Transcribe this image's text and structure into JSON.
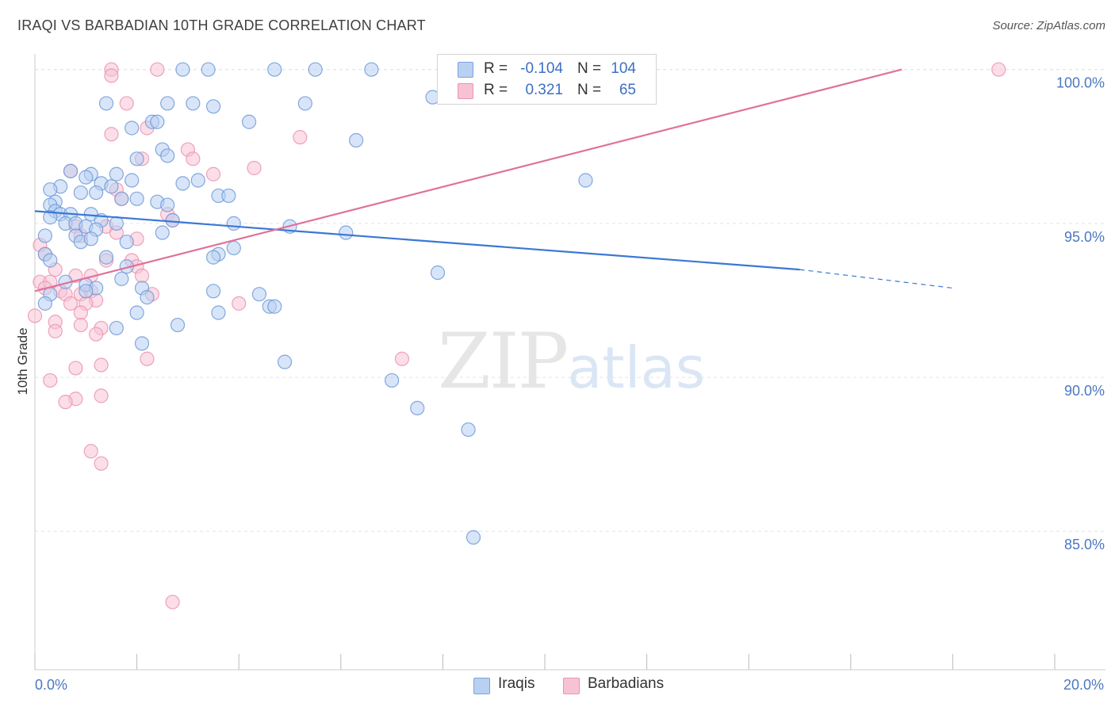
{
  "title": "IRAQI VS BARBADIAN 10TH GRADE CORRELATION CHART",
  "source": "Source: ZipAtlas.com",
  "watermark": {
    "zip": "ZIP",
    "atlas": "atlas"
  },
  "colors": {
    "iraqi": "#3b78d4",
    "iraqi_fill": "#b8d0f2",
    "barbadian": "#e0719b",
    "barbadian_fill": "#f7c3d3",
    "tick_label": "#4a78c2"
  },
  "legend": {
    "rows": [
      {
        "r_label": "R =",
        "r_value": "-0.104",
        "n_label": "N =",
        "n_value": "104"
      },
      {
        "r_label": "R =",
        "r_value": "0.321",
        "n_label": "N =",
        "n_value": "65"
      }
    ]
  },
  "bottom_legend": {
    "iraqis": "Iraqis",
    "barbadians": "Barbadians"
  },
  "chart_data": {
    "type": "scatter",
    "title": "IRAQI VS BARBADIAN 10TH GRADE CORRELATION CHART",
    "xlabel": "",
    "ylabel": "10th Grade",
    "xlim": [
      0,
      20
    ],
    "ylim": [
      80.5,
      100.5
    ],
    "x_tick_labels": [
      "0.0%",
      "20.0%"
    ],
    "y_ticks": [
      100,
      95,
      90,
      85
    ],
    "y_tick_labels": [
      "100.0%",
      "95.0%",
      "90.0%",
      "85.0%"
    ],
    "series": [
      {
        "name": "Iraqis",
        "r": -0.104,
        "n": 104,
        "trend": {
          "x0": 0,
          "y0": 95.4,
          "x1": 15.0,
          "y1": 93.5,
          "dash_to_x": 18.0,
          "dash_to_y": 92.9
        },
        "points": [
          [
            2.9,
            100.0
          ],
          [
            3.4,
            100.0
          ],
          [
            4.7,
            100.0
          ],
          [
            5.5,
            100.0
          ],
          [
            6.6,
            100.0
          ],
          [
            7.8,
            99.1
          ],
          [
            1.4,
            98.9
          ],
          [
            2.6,
            98.9
          ],
          [
            3.1,
            98.9
          ],
          [
            3.5,
            98.8
          ],
          [
            5.3,
            98.9
          ],
          [
            2.3,
            98.3
          ],
          [
            2.4,
            98.3
          ],
          [
            4.2,
            98.3
          ],
          [
            1.9,
            98.1
          ],
          [
            6.3,
            97.7
          ],
          [
            2.5,
            97.4
          ],
          [
            2.0,
            97.1
          ],
          [
            2.6,
            97.2
          ],
          [
            0.7,
            96.7
          ],
          [
            1.1,
            96.6
          ],
          [
            1.6,
            96.6
          ],
          [
            1.0,
            96.5
          ],
          [
            1.9,
            96.4
          ],
          [
            2.9,
            96.3
          ],
          [
            3.2,
            96.4
          ],
          [
            10.8,
            96.4
          ],
          [
            0.5,
            96.2
          ],
          [
            1.3,
            96.3
          ],
          [
            1.5,
            96.2
          ],
          [
            0.3,
            96.1
          ],
          [
            0.9,
            96.0
          ],
          [
            1.2,
            96.0
          ],
          [
            3.6,
            95.9
          ],
          [
            3.8,
            95.9
          ],
          [
            0.4,
            95.7
          ],
          [
            0.3,
            95.6
          ],
          [
            1.7,
            95.8
          ],
          [
            2.0,
            95.8
          ],
          [
            2.4,
            95.7
          ],
          [
            2.6,
            95.6
          ],
          [
            0.4,
            95.4
          ],
          [
            0.5,
            95.3
          ],
          [
            0.7,
            95.3
          ],
          [
            1.1,
            95.3
          ],
          [
            1.3,
            95.1
          ],
          [
            1.6,
            95.0
          ],
          [
            2.7,
            95.1
          ],
          [
            3.9,
            95.0
          ],
          [
            5.0,
            94.9
          ],
          [
            0.3,
            95.2
          ],
          [
            0.6,
            95.0
          ],
          [
            0.8,
            95.0
          ],
          [
            1.0,
            94.9
          ],
          [
            1.2,
            94.8
          ],
          [
            2.5,
            94.7
          ],
          [
            6.1,
            94.7
          ],
          [
            0.2,
            94.6
          ],
          [
            0.8,
            94.6
          ],
          [
            0.9,
            94.4
          ],
          [
            1.1,
            94.5
          ],
          [
            1.8,
            94.4
          ],
          [
            3.9,
            94.2
          ],
          [
            0.2,
            94.0
          ],
          [
            0.3,
            93.8
          ],
          [
            1.4,
            93.9
          ],
          [
            3.6,
            94.0
          ],
          [
            3.5,
            93.9
          ],
          [
            1.8,
            93.6
          ],
          [
            7.9,
            93.4
          ],
          [
            0.6,
            93.1
          ],
          [
            1.0,
            93.0
          ],
          [
            1.2,
            92.9
          ],
          [
            1.7,
            93.2
          ],
          [
            2.1,
            92.9
          ],
          [
            3.5,
            92.8
          ],
          [
            0.3,
            92.7
          ],
          [
            0.2,
            92.4
          ],
          [
            1.0,
            92.8
          ],
          [
            2.2,
            92.6
          ],
          [
            4.4,
            92.7
          ],
          [
            4.6,
            92.3
          ],
          [
            4.7,
            92.3
          ],
          [
            2.0,
            92.1
          ],
          [
            2.8,
            91.7
          ],
          [
            3.6,
            92.1
          ],
          [
            1.6,
            91.6
          ],
          [
            2.1,
            91.1
          ],
          [
            4.9,
            90.5
          ],
          [
            7.0,
            89.9
          ],
          [
            7.5,
            89.0
          ],
          [
            8.5,
            88.3
          ],
          [
            8.6,
            84.8
          ]
        ]
      },
      {
        "name": "Barbadians",
        "r": 0.321,
        "n": 65,
        "trend": {
          "x0": 0,
          "y0": 92.8,
          "x1": 17.0,
          "y1": 100.0
        },
        "points": [
          [
            1.5,
            100.0
          ],
          [
            2.4,
            100.0
          ],
          [
            18.9,
            100.0
          ],
          [
            1.5,
            99.8
          ],
          [
            1.8,
            98.9
          ],
          [
            2.2,
            98.1
          ],
          [
            1.5,
            97.9
          ],
          [
            5.2,
            97.8
          ],
          [
            3.0,
            97.4
          ],
          [
            2.1,
            97.1
          ],
          [
            3.1,
            97.1
          ],
          [
            4.3,
            96.8
          ],
          [
            0.7,
            96.7
          ],
          [
            3.5,
            96.6
          ],
          [
            1.6,
            96.1
          ],
          [
            1.7,
            95.8
          ],
          [
            2.6,
            95.3
          ],
          [
            2.7,
            95.1
          ],
          [
            0.8,
            94.9
          ],
          [
            1.4,
            94.9
          ],
          [
            1.6,
            94.7
          ],
          [
            2.0,
            94.5
          ],
          [
            0.9,
            94.6
          ],
          [
            0.1,
            94.3
          ],
          [
            0.2,
            94.0
          ],
          [
            1.4,
            93.8
          ],
          [
            1.9,
            93.8
          ],
          [
            2.0,
            93.6
          ],
          [
            0.4,
            93.5
          ],
          [
            0.1,
            93.1
          ],
          [
            0.3,
            93.1
          ],
          [
            0.8,
            93.3
          ],
          [
            1.1,
            93.3
          ],
          [
            2.1,
            93.3
          ],
          [
            0.2,
            92.9
          ],
          [
            0.5,
            92.8
          ],
          [
            0.6,
            92.7
          ],
          [
            0.9,
            92.7
          ],
          [
            1.1,
            92.8
          ],
          [
            1.2,
            92.5
          ],
          [
            2.3,
            92.7
          ],
          [
            0.7,
            92.4
          ],
          [
            1.0,
            92.4
          ],
          [
            4.0,
            92.4
          ],
          [
            0.0,
            92.0
          ],
          [
            0.9,
            92.1
          ],
          [
            0.4,
            91.8
          ],
          [
            0.9,
            91.7
          ],
          [
            1.3,
            91.6
          ],
          [
            0.4,
            91.5
          ],
          [
            1.2,
            91.4
          ],
          [
            7.2,
            90.6
          ],
          [
            2.2,
            90.6
          ],
          [
            1.3,
            90.4
          ],
          [
            0.8,
            90.3
          ],
          [
            0.3,
            89.9
          ],
          [
            1.3,
            89.4
          ],
          [
            0.8,
            89.3
          ],
          [
            0.6,
            89.2
          ],
          [
            1.1,
            87.6
          ],
          [
            1.3,
            87.2
          ],
          [
            2.7,
            82.7
          ]
        ]
      }
    ]
  }
}
